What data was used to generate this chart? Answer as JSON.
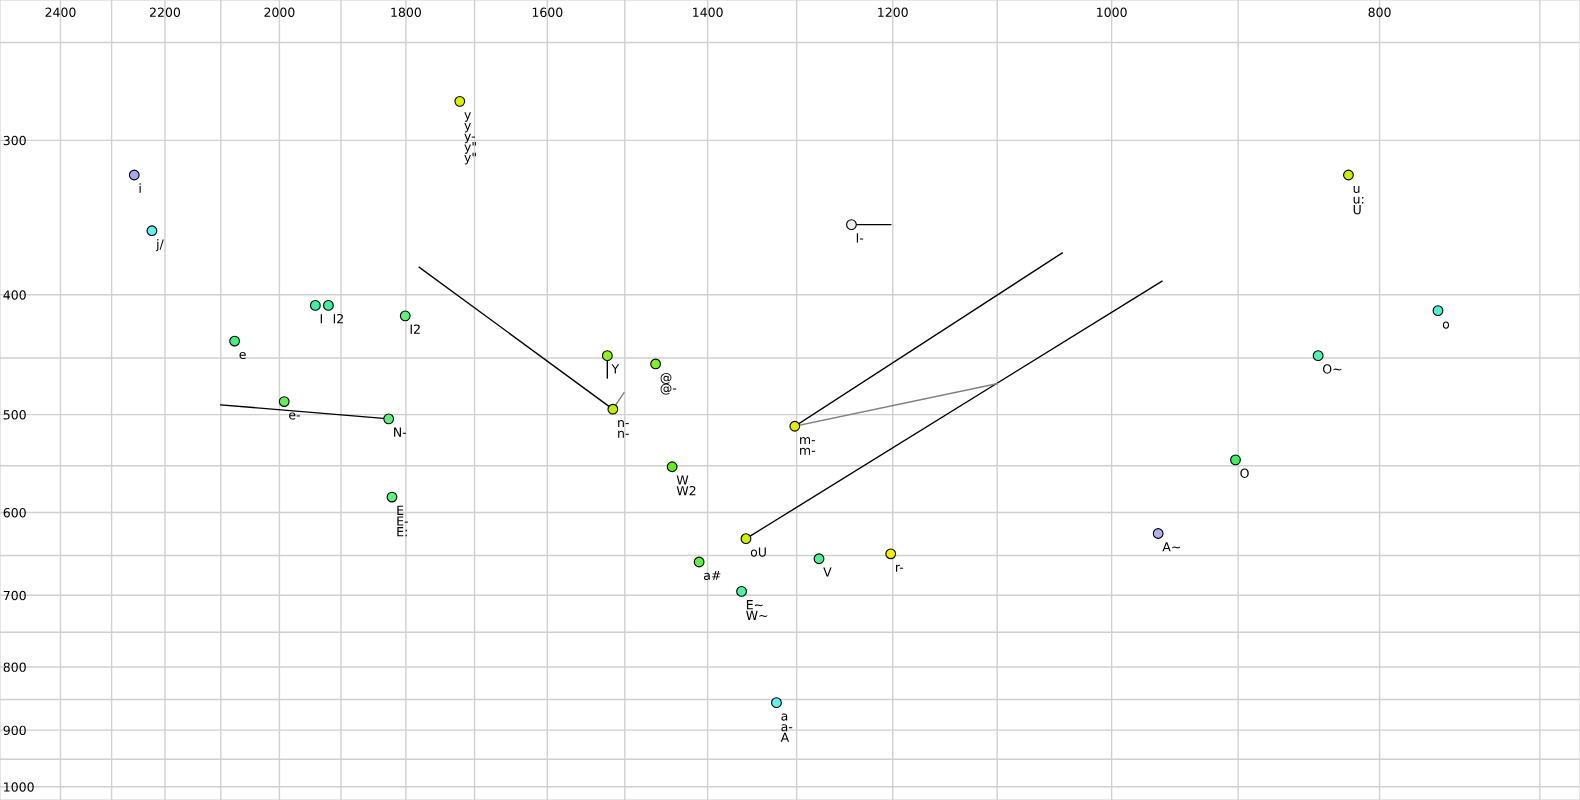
{
  "chart_data": {
    "type": "scatter",
    "log": "xy",
    "grid": true,
    "marker": "circle",
    "xlim": [
      2524,
      677
    ],
    "ylim": [
      1025,
      231
    ],
    "xticks": [
      2400,
      {
        "value": 2300,
        "label": null
      },
      2200,
      {
        "value": 2100,
        "label": null
      },
      2000,
      {
        "value": 1900,
        "label": null
      },
      1800,
      {
        "value": 1700,
        "label": null
      },
      1600,
      {
        "value": 1500,
        "label": null
      },
      1400,
      {
        "value": 1300,
        "label": null
      },
      1200,
      {
        "value": 1100,
        "label": null
      },
      1000,
      {
        "value": 900,
        "label": null
      },
      800,
      {
        "value": 700,
        "label": null
      }
    ],
    "yticks": [
      {
        "value": 250,
        "label": null
      },
      300,
      400,
      {
        "value": 450,
        "label": null
      },
      500,
      {
        "value": 550,
        "label": null
      },
      600,
      {
        "value": 650,
        "label": null
      },
      700,
      {
        "value": 750,
        "label": null
      },
      800,
      {
        "value": 850,
        "label": null
      },
      900,
      {
        "value": 950,
        "label": null
      },
      1000
    ],
    "series": [
      {
        "type": "line",
        "marker": "none",
        "color": "#000000",
        "x": [
          2100,
          1826
        ],
        "values": [
          491,
          504
        ]
      },
      {
        "type": "line",
        "marker": "none",
        "color": "#000000",
        "x": [
          1780,
          1515
        ],
        "values": [
          380,
          495
        ]
      },
      {
        "type": "line",
        "marker": "none",
        "color": "#808080",
        "x": [
          1515,
          1501
        ],
        "values": [
          495,
          480
        ]
      },
      {
        "type": "line",
        "marker": "none",
        "color": "#000000",
        "x": [
          1522,
          1522
        ],
        "values": [
          448,
          467
        ]
      },
      {
        "type": "line",
        "marker": "none",
        "color": "#000000",
        "x": [
          1302,
          1042
        ],
        "values": [
          511,
          370
        ]
      },
      {
        "type": "line",
        "marker": "none",
        "color": "#000000",
        "x": [
          1356,
          959
        ],
        "values": [
          630,
          390
        ]
      },
      {
        "type": "line",
        "marker": "none",
        "color": "#808080",
        "x": [
          1302,
          1100
        ],
        "values": [
          511,
          472
        ]
      },
      {
        "type": "line",
        "marker": "none",
        "color": "#000000",
        "x": [
          1242,
          1202
        ],
        "values": [
          351,
          351
        ]
      },
      {
        "x": [
          2257,
          2224,
          1721,
          1941,
          1920,
          1801,
          2076,
          1992,
          1826,
          1821,
          1522,
          1462,
          1515,
          1442,
          1410,
          1361,
          1356,
          1322,
          1302,
          1276,
          1242,
          1202,
          962,
          902,
          842,
          821,
          762
        ],
        "values": [
          320,
          355,
          279,
          408,
          408,
          416,
          436,
          488,
          504,
          583,
          448,
          455,
          495,
          551,
          658,
          695,
          630,
          855,
          511,
          654,
          351,
          648,
          624,
          544,
          448,
          320,
          412
        ],
        "colors": [
          "#a8a8f0",
          "#60f0f0",
          "#d8f000",
          "#40f0a0",
          "#40f0a0",
          "#60f080",
          "#40f080",
          "#60f060",
          "#60f080",
          "#60f080",
          "#90f020",
          "#80f020",
          "#c0f000",
          "#60f020",
          "#60f040",
          "#50f0a0",
          "#d0f000",
          "#60f0f0",
          "#e0f000",
          "#50f090",
          "#f0f0f0",
          "#f0f000",
          "#b0b0f0",
          "#40f060",
          "#50f0b0",
          "#c8f000",
          "#50f0d0"
        ]
      }
    ],
    "annotations": [
      {
        "text": "i",
        "x": 2257,
        "y": 320
      },
      {
        "text": "j/",
        "x": 2224,
        "y": 355
      },
      {
        "text": "y\ny\ny-\ny\"\ny\"",
        "x": 1721,
        "y": 279
      },
      {
        "text": "I",
        "x": 1941,
        "y": 408
      },
      {
        "text": "I2",
        "x": 1920,
        "y": 408
      },
      {
        "text": "I2",
        "x": 1801,
        "y": 416
      },
      {
        "text": "e",
        "x": 2076,
        "y": 436
      },
      {
        "text": "e-",
        "x": 1992,
        "y": 488
      },
      {
        "text": "N-",
        "x": 1826,
        "y": 504
      },
      {
        "text": "E\nE-\nE:",
        "x": 1821,
        "y": 583
      },
      {
        "text": "Y",
        "x": 1522,
        "y": 448
      },
      {
        "text": "@\n@-",
        "x": 1462,
        "y": 455
      },
      {
        "text": "n-\nn-",
        "x": 1515,
        "y": 495
      },
      {
        "text": "W\nW2",
        "x": 1442,
        "y": 551
      },
      {
        "text": "a#",
        "x": 1410,
        "y": 658
      },
      {
        "text": "E~\nW~",
        "x": 1361,
        "y": 695
      },
      {
        "text": "oU",
        "x": 1356,
        "y": 630
      },
      {
        "text": "a\na-\nA",
        "x": 1322,
        "y": 855
      },
      {
        "text": "m-\nm-",
        "x": 1302,
        "y": 511
      },
      {
        "text": "V",
        "x": 1276,
        "y": 654
      },
      {
        "text": "I-",
        "x": 1242,
        "y": 351
      },
      {
        "text": "r-",
        "x": 1202,
        "y": 648
      },
      {
        "text": "A~",
        "x": 962,
        "y": 624
      },
      {
        "text": "O",
        "x": 902,
        "y": 544
      },
      {
        "text": "O~",
        "x": 842,
        "y": 448
      },
      {
        "text": "u\nu:\nU",
        "x": 821,
        "y": 320
      },
      {
        "text": "o",
        "x": 762,
        "y": 412
      }
    ]
  }
}
